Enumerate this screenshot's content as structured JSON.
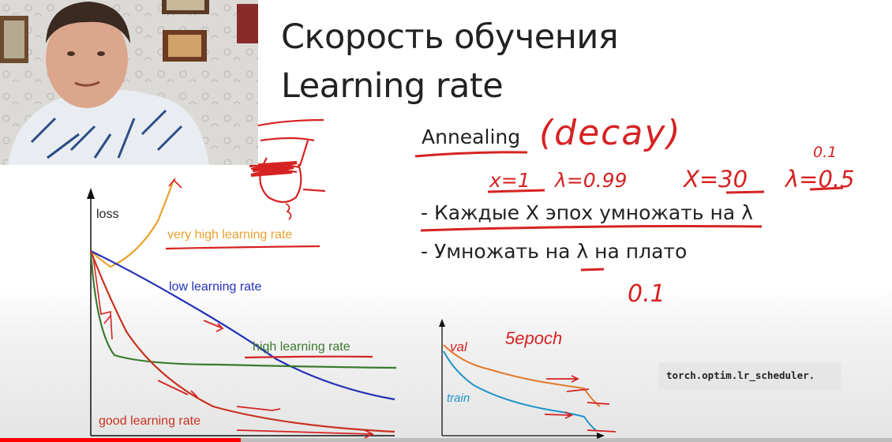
{
  "slide": {
    "title_line1": "Скорость обучения",
    "title_line2": "Learning rate",
    "annealing": "Annealing",
    "bullet1": "- Каждые X эпох умножать на λ",
    "bullet2": "- Умножать на λ на плато"
  },
  "handwriting": {
    "decay": "(decay)",
    "x_eq_1": "x=1",
    "lambda_099": "λ=0.99",
    "x_eq_30": "X=30",
    "lambda_05": "λ=0.5",
    "lambda_01": "0.1",
    "value_01": "0.1",
    "val_label": "val",
    "train_label": "train",
    "epoch_label": "5epoch"
  },
  "code": {
    "text": "torch.optim.lr_scheduler."
  },
  "chart_main": {
    "ylabel": "loss",
    "series": [
      {
        "name": "very high learning rate",
        "color": "#e8a22d"
      },
      {
        "name": "low learning rate",
        "color": "#2231b8"
      },
      {
        "name": "high learning rate",
        "color": "#3b7a2f"
      },
      {
        "name": "good learning rate",
        "color": "#c8321e"
      }
    ]
  },
  "video": {
    "progress": 0.27
  }
}
